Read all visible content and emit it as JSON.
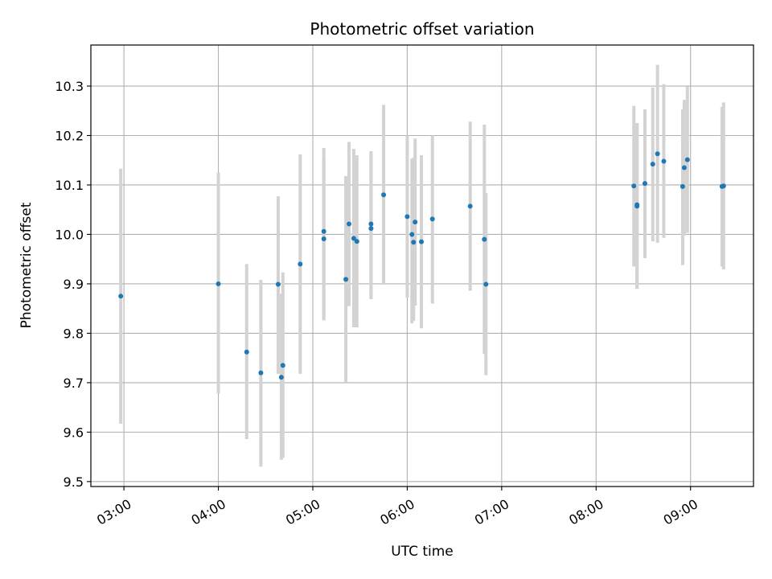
{
  "chart_data": {
    "type": "scatter",
    "title": "Photometric offset variation",
    "xlabel": "UTC time",
    "ylabel": "Photometric offset",
    "x_ticks": [
      "03:00",
      "04:00",
      "05:00",
      "06:00",
      "07:00",
      "08:00",
      "09:00"
    ],
    "y_ticks": [
      "9.5",
      "9.6",
      "9.7",
      "9.8",
      "9.9",
      "10.0",
      "10.1",
      "10.2",
      "10.3"
    ],
    "xlim": [
      "02:39",
      "09:40"
    ],
    "ylim": [
      9.49,
      10.383
    ],
    "grid": true,
    "colors": {
      "point": "#1f77b4",
      "errorbar": "#d3d3d3",
      "grid": "#b0b0b0",
      "frame": "#000000"
    },
    "points": [
      {
        "x": "02:58",
        "y": 9.875,
        "lo": 9.617,
        "hi": 10.133
      },
      {
        "x": "04:00",
        "y": 9.9,
        "lo": 9.678,
        "hi": 10.125
      },
      {
        "x": "04:18",
        "y": 9.762,
        "lo": 9.586,
        "hi": 9.94
      },
      {
        "x": "04:27",
        "y": 9.72,
        "lo": 9.53,
        "hi": 9.908
      },
      {
        "x": "04:38",
        "y": 9.899,
        "lo": 9.718,
        "hi": 10.077
      },
      {
        "x": "04:40",
        "y": 9.711,
        "lo": 9.544,
        "hi": 9.88
      },
      {
        "x": "04:41",
        "y": 9.735,
        "lo": 9.548,
        "hi": 9.923
      },
      {
        "x": "04:52",
        "y": 9.94,
        "lo": 9.718,
        "hi": 10.162
      },
      {
        "x": "05:07",
        "y": 10.006,
        "lo": 9.829,
        "hi": 10.175
      },
      {
        "x": "05:07",
        "y": 9.991,
        "lo": 9.826,
        "hi": 10.156
      },
      {
        "x": "05:21",
        "y": 9.909,
        "lo": 9.7,
        "hi": 10.118
      },
      {
        "x": "05:23",
        "y": 10.021,
        "lo": 9.855,
        "hi": 10.187
      },
      {
        "x": "05:26",
        "y": 9.992,
        "lo": 9.812,
        "hi": 10.173
      },
      {
        "x": "05:28",
        "y": 9.986,
        "lo": 9.812,
        "hi": 10.16
      },
      {
        "x": "05:37",
        "y": 10.012,
        "lo": 9.869,
        "hi": 10.168
      },
      {
        "x": "05:37",
        "y": 10.021,
        "lo": 9.869,
        "hi": 10.168
      },
      {
        "x": "05:45",
        "y": 10.08,
        "lo": 9.898,
        "hi": 10.262
      },
      {
        "x": "06:00",
        "y": 10.036,
        "lo": 9.872,
        "hi": 10.2
      },
      {
        "x": "06:03",
        "y": 10.0,
        "lo": 9.82,
        "hi": 10.153
      },
      {
        "x": "06:04",
        "y": 9.984,
        "lo": 9.825,
        "hi": 10.155
      },
      {
        "x": "06:05",
        "y": 10.025,
        "lo": 9.856,
        "hi": 10.194
      },
      {
        "x": "06:09",
        "y": 9.985,
        "lo": 9.81,
        "hi": 10.16
      },
      {
        "x": "06:16",
        "y": 10.031,
        "lo": 9.86,
        "hi": 10.2
      },
      {
        "x": "06:40",
        "y": 10.057,
        "lo": 9.886,
        "hi": 10.228
      },
      {
        "x": "06:49",
        "y": 9.99,
        "lo": 9.758,
        "hi": 10.222
      },
      {
        "x": "06:50",
        "y": 9.899,
        "lo": 9.715,
        "hi": 10.084
      },
      {
        "x": "08:24",
        "y": 10.098,
        "lo": 9.935,
        "hi": 10.26
      },
      {
        "x": "08:26",
        "y": 10.057,
        "lo": 9.89,
        "hi": 10.225
      },
      {
        "x": "08:26",
        "y": 10.06,
        "lo": 9.89,
        "hi": 10.225
      },
      {
        "x": "08:31",
        "y": 10.103,
        "lo": 9.952,
        "hi": 10.253
      },
      {
        "x": "08:36",
        "y": 10.142,
        "lo": 9.986,
        "hi": 10.297
      },
      {
        "x": "08:39",
        "y": 10.163,
        "lo": 9.983,
        "hi": 10.343
      },
      {
        "x": "08:43",
        "y": 10.148,
        "lo": 9.993,
        "hi": 10.304
      },
      {
        "x": "08:55",
        "y": 10.097,
        "lo": 9.938,
        "hi": 10.253
      },
      {
        "x": "08:56",
        "y": 10.135,
        "lo": 9.997,
        "hi": 10.272
      },
      {
        "x": "08:58",
        "y": 10.151,
        "lo": 10.003,
        "hi": 10.299
      },
      {
        "x": "09:20",
        "y": 10.097,
        "lo": 9.935,
        "hi": 10.258
      },
      {
        "x": "09:21",
        "y": 10.098,
        "lo": 9.929,
        "hi": 10.267
      }
    ]
  }
}
